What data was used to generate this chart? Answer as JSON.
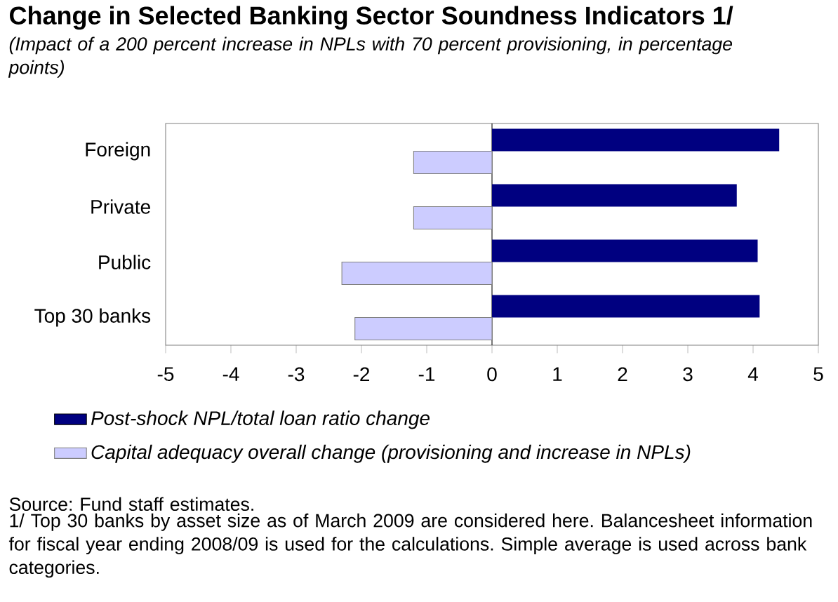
{
  "chart_data": {
    "type": "bar",
    "orientation": "horizontal",
    "title": "Change in Selected Banking Sector Soundness Indicators 1/",
    "subtitle": "(Impact of a 200 percent increase in NPLs with 70 percent provisioning, in percentage points)",
    "categories": [
      "Foreign",
      "Private",
      "Public",
      "Top 30 banks"
    ],
    "series": [
      {
        "name": "Post-shock NPL/total loan ratio change",
        "color": "#000080",
        "values": [
          4.4,
          3.75,
          4.07,
          4.1
        ]
      },
      {
        "name": "Capital adequacy overall change (provisioning and increase in NPLs)",
        "color": "#ccccff",
        "values": [
          -1.2,
          -1.2,
          -2.3,
          -2.1
        ]
      }
    ],
    "xlim": [
      -5,
      5
    ],
    "xticks": [
      -5,
      -4,
      -3,
      -2,
      -1,
      0,
      1,
      2,
      3,
      4,
      5
    ],
    "grid": false,
    "legend": "bottom",
    "ref_lines": [
      {
        "axis": "x",
        "value": 0,
        "color": "#000000"
      }
    ],
    "annotations": [
      "Source: Fund staff estimates.",
      "1/ Top 30 banks by asset size as of March 2009 are considered here. Balancesheet information for fiscal year ending 2008/09 is used for the calculations. Simple average is used across bank categories."
    ]
  }
}
